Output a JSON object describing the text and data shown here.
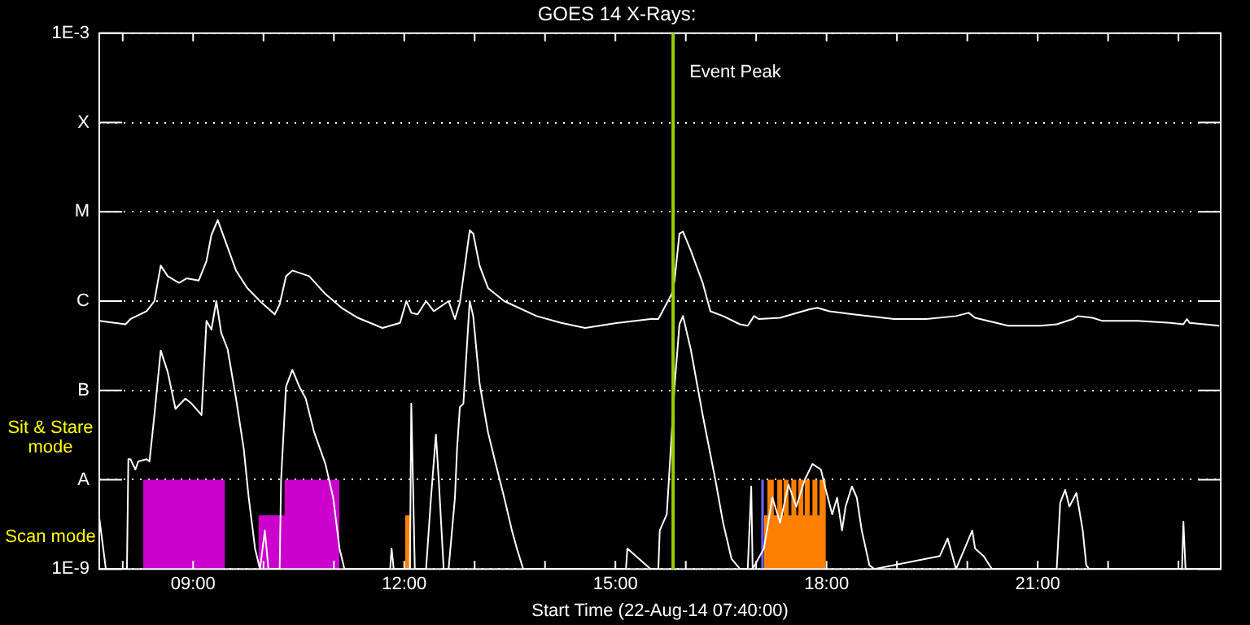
{
  "chart_data": {
    "type": "line",
    "title": "GOES 14 X-Rays:",
    "xlabel": "Start Time (22-Aug-14 07:40:00)",
    "log": true,
    "grid": "y",
    "xlim": [
      7.667,
      23.6
    ],
    "ylim": [
      1e-09,
      0.001
    ],
    "xticks": [
      {
        "value": 8,
        "label": null
      },
      {
        "value": 9,
        "label": "09:00"
      },
      {
        "value": 10,
        "label": null
      },
      {
        "value": 11,
        "label": null
      },
      {
        "value": 12,
        "label": "12:00"
      },
      {
        "value": 13,
        "label": null
      },
      {
        "value": 14,
        "label": null
      },
      {
        "value": 15,
        "label": "15:00"
      },
      {
        "value": 16,
        "label": null
      },
      {
        "value": 17,
        "label": null
      },
      {
        "value": 18,
        "label": "18:00"
      },
      {
        "value": 19,
        "label": null
      },
      {
        "value": 20,
        "label": null
      },
      {
        "value": 21,
        "label": "21:00"
      },
      {
        "value": 22,
        "label": null
      },
      {
        "value": 23,
        "label": null
      }
    ],
    "yticks": [
      {
        "value": 1e-09,
        "label": "1E-9"
      },
      {
        "value": 1e-08,
        "label": "A"
      },
      {
        "value": 1e-07,
        "label": "B"
      },
      {
        "value": 1e-06,
        "label": "C"
      },
      {
        "value": 1e-05,
        "label": "M"
      },
      {
        "value": 0.0001,
        "label": "X"
      },
      {
        "value": 0.001,
        "label": "1E-3"
      }
    ],
    "ref_lines": [
      {
        "axis": "x",
        "value": 15.82,
        "label": "Event Peak",
        "color": "#99cc00"
      }
    ],
    "annotations": [
      "Sit & Stare mode",
      "Scan mode"
    ],
    "series": [
      {
        "type": "area",
        "color": "#cc00cc",
        "x": [
          8.29,
          8.29,
          9.45,
          9.45,
          9.93,
          9.93,
          10.3,
          10.3,
          11.08,
          11.08
        ],
        "values": [
          1e-09,
          1e-08,
          1e-08,
          1e-09,
          1e-09,
          4e-09,
          4e-09,
          1e-08,
          1e-08,
          1e-09
        ]
      },
      {
        "type": "area",
        "color": "#ff8000",
        "x": [
          12.01,
          12.01,
          12.1,
          12.1
        ],
        "values": [
          1e-09,
          4e-09,
          4e-09,
          1e-09
        ]
      },
      {
        "type": "area",
        "color": "#6666ff",
        "x": [
          17.07,
          17.07,
          17.11,
          17.11
        ],
        "values": [
          1e-09,
          1e-08,
          1e-08,
          1e-09
        ]
      },
      {
        "type": "area",
        "color": "#ff8000",
        "x": [
          17.11,
          17.11,
          17.16,
          17.16,
          17.25,
          17.25,
          17.3,
          17.3,
          17.37,
          17.37,
          17.39,
          17.39,
          17.46,
          17.46,
          17.5,
          17.5,
          17.57,
          17.57,
          17.6,
          17.6,
          17.67,
          17.67,
          17.69,
          17.69,
          17.76,
          17.76,
          17.8,
          17.8,
          17.87,
          17.87,
          17.9,
          17.9,
          17.99,
          17.99
        ],
        "values": [
          1e-09,
          4e-09,
          4e-09,
          1e-08,
          1e-08,
          4e-09,
          4e-09,
          1e-08,
          1e-08,
          4e-09,
          4e-09,
          1e-08,
          1e-08,
          4e-09,
          4e-09,
          1e-08,
          1e-08,
          4e-09,
          4e-09,
          1e-08,
          1e-08,
          4e-09,
          4e-09,
          1e-08,
          1e-08,
          4e-09,
          4e-09,
          1e-08,
          1e-08,
          4e-09,
          4e-09,
          1e-08,
          1e-08,
          1e-09
        ]
      },
      {
        "type": "line",
        "color": "#ffffff",
        "x": [
          7.67,
          8.04,
          8.11,
          8.34,
          8.45,
          8.54,
          8.64,
          8.8,
          8.91,
          9.08,
          9.19,
          9.26,
          9.35,
          9.42,
          9.61,
          9.77,
          9.95,
          10.16,
          10.23,
          10.32,
          10.41,
          10.65,
          10.88,
          11.11,
          11.34,
          11.69,
          11.8,
          11.94,
          12.03,
          12.1,
          12.19,
          12.31,
          12.42,
          12.63,
          12.72,
          12.79,
          12.93,
          12.98,
          13.07,
          13.19,
          13.42,
          13.88,
          14.23,
          14.57,
          15.03,
          15.5,
          15.61,
          15.8,
          15.84,
          15.91,
          15.96,
          16.07,
          16.24,
          16.35,
          16.53,
          16.77,
          16.88,
          16.97,
          17.04,
          17.34,
          17.76,
          17.87,
          18.04,
          18.38,
          18.96,
          19.42,
          19.84,
          20.02,
          20.11,
          20.58,
          21.04,
          21.27,
          21.5,
          21.57,
          21.78,
          21.92,
          22.42,
          22.89,
          23.07,
          23.12,
          23.16,
          23.58
        ],
        "values": [
          6e-07,
          5.5e-07,
          6.3e-07,
          7.7e-07,
          1e-06,
          2.5e-06,
          1.9e-06,
          1.6e-06,
          1.8e-06,
          1.7e-06,
          2.8e-06,
          5.5e-06,
          8.1e-06,
          5.7e-06,
          2.2e-06,
          1.4e-06,
          1e-06,
          7.1e-07,
          9.2e-07,
          1.9e-06,
          2.2e-06,
          1.9e-06,
          1.2e-06,
          8.4e-07,
          6.5e-07,
          5e-07,
          5.3e-07,
          5.7e-07,
          1e-06,
          7.4e-07,
          7.1e-07,
          1e-06,
          7.7e-07,
          1e-06,
          6.3e-07,
          9.6e-07,
          6.2e-06,
          5.7e-06,
          2.5e-06,
          1.4e-06,
          1e-06,
          6.8e-07,
          5.7e-07,
          5e-07,
          5.7e-07,
          6.3e-07,
          6.3e-07,
          1.2e-06,
          1.7e-06,
          5.7e-06,
          6e-06,
          3.7e-06,
          1.6e-06,
          7.7e-07,
          6.8e-07,
          5.5e-07,
          5.3e-07,
          6.8e-07,
          6.3e-07,
          6.5e-07,
          8.1e-07,
          8.4e-07,
          7.7e-07,
          7.1e-07,
          6.3e-07,
          6.3e-07,
          6.8e-07,
          7.4e-07,
          6.5e-07,
          5.3e-07,
          5.3e-07,
          5.5e-07,
          6.3e-07,
          6.8e-07,
          6.5e-07,
          6e-07,
          6e-07,
          5.7e-07,
          5.5e-07,
          6.3e-07,
          5.7e-07,
          5.3e-07
        ]
      },
      {
        "type": "line",
        "color": "#ffffff",
        "x": [
          7.67,
          7.76,
          8.06,
          8.08,
          8.11,
          8.18,
          8.22,
          8.34,
          8.38,
          8.45,
          8.54,
          8.64,
          8.75,
          8.82,
          8.89,
          8.98,
          9.12,
          9.19,
          9.26,
          9.33,
          9.4,
          9.49,
          9.61,
          9.72,
          9.79,
          9.88,
          9.95,
          10.02,
          10.07,
          10.23,
          10.25,
          10.32,
          10.41,
          10.51,
          10.6,
          10.72,
          10.88,
          10.99,
          11.08,
          11.15,
          11.8,
          11.82,
          11.85,
          12.08,
          12.1,
          12.15,
          12.31,
          12.38,
          12.45,
          12.49,
          12.56,
          12.63,
          12.72,
          12.75,
          12.79,
          12.84,
          12.93,
          12.98,
          13.07,
          13.19,
          13.3,
          13.42,
          13.53,
          13.6,
          13.69,
          15.15,
          15.17,
          15.5,
          15.61,
          15.63,
          15.73,
          15.84,
          15.91,
          15.96,
          16.07,
          16.24,
          16.42,
          16.53,
          16.65,
          16.77,
          16.88,
          16.93,
          16.95,
          17.11,
          17.23,
          17.34,
          17.46,
          17.57,
          17.69,
          17.8,
          17.92,
          17.99,
          18.08,
          18.15,
          18.22,
          18.27,
          18.36,
          18.43,
          18.5,
          18.61,
          18.68,
          19.61,
          19.72,
          19.84,
          20.07,
          20.11,
          20.23,
          20.35,
          21.27,
          21.32,
          21.39,
          21.45,
          21.55,
          21.64,
          21.69,
          21.73,
          23.05,
          23.07,
          23.1,
          23.58
        ],
        "values": [
          3.6e-09,
          1e-09,
          1e-09,
          1.7e-08,
          1.7e-08,
          1.3e-08,
          1.6e-08,
          1.7e-08,
          1.6e-08,
          5.3e-08,
          2.8e-07,
          1.6e-07,
          6.2e-08,
          7.1e-08,
          8.1e-08,
          7.1e-08,
          5.3e-08,
          6e-07,
          4.8e-07,
          1e-06,
          4.4e-07,
          2.9e-07,
          8.1e-08,
          2.2e-08,
          6.3e-09,
          1.7e-09,
          1e-09,
          2.7e-09,
          1e-09,
          1e-09,
          1e-08,
          1.1e-07,
          1.7e-07,
          1.1e-07,
          8.1e-08,
          3.4e-08,
          1.5e-08,
          6.3e-09,
          1.7e-09,
          1e-09,
          1e-09,
          1.7e-09,
          1e-09,
          1e-09,
          7.1e-08,
          1e-09,
          1e-09,
          6.3e-09,
          3.2e-08,
          1e-08,
          1e-09,
          1e-09,
          6.3e-09,
          2.2e-08,
          6.5e-08,
          7.1e-08,
          1e-06,
          6.8e-07,
          1.2e-07,
          3.4e-08,
          1.5e-08,
          6.3e-09,
          2.7e-09,
          1.7e-09,
          1e-09,
          1e-09,
          1.7e-09,
          1e-09,
          1e-09,
          2.7e-09,
          4.1e-09,
          1.1e-07,
          5.5e-07,
          6.8e-07,
          2.9e-07,
          5.3e-08,
          1e-08,
          3.3e-09,
          1.3e-09,
          1e-09,
          1e-09,
          8.4e-09,
          1e-09,
          1.7e-09,
          6.3e-09,
          3.3e-09,
          8.8e-09,
          5e-09,
          1e-08,
          1.5e-08,
          1.3e-08,
          7.7e-09,
          4.1e-09,
          6.3e-09,
          2.7e-09,
          5e-09,
          8.4e-09,
          6.3e-09,
          2.7e-09,
          1.1e-09,
          1e-09,
          1.4e-09,
          2.2e-09,
          1e-09,
          2.7e-09,
          1.7e-09,
          1.4e-09,
          1e-09,
          1e-09,
          5.5e-09,
          7.7e-09,
          5e-09,
          7.1e-09,
          2.7e-09,
          1.1e-09,
          1e-09,
          1e-09,
          3.4e-09,
          1e-09,
          1e-09
        ]
      }
    ]
  }
}
